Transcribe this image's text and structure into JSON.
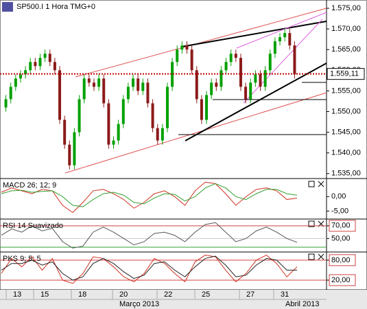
{
  "chart_data": [
    {
      "type": "candlestick",
      "title": "SP500.I 1 Hora TMG+0",
      "open": [
        1551,
        1553,
        1556,
        1558,
        1559,
        1560,
        1562,
        1561,
        1563,
        1564,
        1562,
        1560,
        1548,
        1542,
        1537,
        1545,
        1553,
        1558,
        1557,
        1556,
        1558,
        1552,
        1542,
        1543,
        1547,
        1553,
        1556,
        1558,
        1555,
        1557,
        1552,
        1546,
        1543,
        1546,
        1556,
        1562,
        1565,
        1566,
        1565,
        1560,
        1553,
        1548,
        1554,
        1557,
        1556,
        1560,
        1562,
        1564,
        1563,
        1556,
        1553,
        1557,
        1559,
        1556,
        1560,
        1564,
        1567,
        1568,
        1569,
        1566
      ],
      "high": [
        1554,
        1557,
        1559,
        1560,
        1561,
        1563,
        1563,
        1564,
        1565,
        1565,
        1563,
        1561,
        1549,
        1543,
        1546,
        1554,
        1559,
        1559,
        1558,
        1559,
        1559,
        1553,
        1544,
        1548,
        1554,
        1557,
        1559,
        1559,
        1558,
        1558,
        1553,
        1547,
        1547,
        1557,
        1563,
        1566,
        1567,
        1567,
        1566,
        1561,
        1554,
        1555,
        1558,
        1558,
        1561,
        1563,
        1565,
        1565,
        1564,
        1557,
        1558,
        1560,
        1560,
        1561,
        1565,
        1568,
        1569,
        1570,
        1570,
        1567
      ],
      "low": [
        1550,
        1552,
        1555,
        1557,
        1558,
        1559,
        1560,
        1560,
        1562,
        1561,
        1559,
        1547,
        1541,
        1536,
        1536,
        1544,
        1552,
        1556,
        1555,
        1555,
        1551,
        1541,
        1541,
        1542,
        1546,
        1552,
        1555,
        1554,
        1554,
        1551,
        1545,
        1542,
        1542,
        1545,
        1555,
        1561,
        1564,
        1564,
        1559,
        1552,
        1547,
        1547,
        1553,
        1555,
        1555,
        1559,
        1561,
        1562,
        1555,
        1552,
        1552,
        1556,
        1555,
        1555,
        1559,
        1563,
        1566,
        1567,
        1565,
        1558
      ],
      "close": [
        1553,
        1556,
        1558,
        1559,
        1560,
        1562,
        1561,
        1563,
        1564,
        1562,
        1560,
        1548,
        1542,
        1537,
        1545,
        1553,
        1558,
        1557,
        1556,
        1558,
        1552,
        1542,
        1543,
        1547,
        1553,
        1556,
        1558,
        1555,
        1557,
        1552,
        1546,
        1543,
        1546,
        1556,
        1562,
        1565,
        1566,
        1565,
        1560,
        1553,
        1548,
        1554,
        1557,
        1556,
        1560,
        1562,
        1564,
        1563,
        1556,
        1553,
        1557,
        1559,
        1556,
        1560,
        1564,
        1567,
        1568,
        1569,
        1566,
        1559
      ],
      "up_color": "#00a000",
      "down_color": "#8b1a1a",
      "ylim": [
        1533.8,
        1577
      ],
      "yticks": [
        {
          "value": 1535,
          "label": "1.535,00"
        },
        {
          "value": 1540,
          "label": "1.540,00"
        },
        {
          "value": 1545,
          "label": "1.545,00"
        },
        {
          "value": 1550,
          "label": "1.550,00"
        },
        {
          "value": 1555,
          "label": "1.555,00"
        },
        {
          "value": 1560,
          "label": "1.560,00"
        },
        {
          "value": 1565,
          "label": "1.565,00"
        },
        {
          "value": 1570,
          "label": "1.570,00"
        },
        {
          "value": 1575,
          "label": "1.575,00"
        }
      ],
      "last_price": {
        "value": 1559.11,
        "label": "1.559,11"
      },
      "day_labels": [
        "13",
        "15",
        "18",
        "20",
        "22",
        "25",
        "27",
        "31"
      ],
      "month_labels": [
        "Março 2013",
        "Abril 2013"
      ]
    },
    {
      "type": "line",
      "title": "MACD 26; 12; 9",
      "ylim": [
        -7.75,
        6.25
      ],
      "yticks": [
        {
          "value": 0,
          "label": "0,00"
        },
        {
          "value": -5,
          "label": "-5,00"
        }
      ],
      "series": [
        {
          "color": "#d03020",
          "values": [
            1.5,
            3,
            2,
            1,
            2.5,
            2,
            -3,
            -5.5,
            -2,
            2,
            2.5,
            1,
            -1,
            -4,
            -2,
            1,
            2,
            0,
            -3,
            2,
            5,
            4.5,
            1,
            -3,
            0,
            2.5,
            3,
            2,
            -1,
            -0.5
          ]
        },
        {
          "color": "#30a030",
          "values": [
            1,
            2,
            2.2,
            1.5,
            1.8,
            2,
            0,
            -3,
            -3.5,
            -1,
            1,
            1.5,
            0.5,
            -2,
            -2.5,
            -0.5,
            1,
            0.8,
            -1.5,
            0,
            3,
            4.5,
            3,
            0,
            -1,
            1,
            2.5,
            2.5,
            1,
            0.5
          ]
        }
      ]
    },
    {
      "type": "line",
      "title": "RSI 14 Suavizado",
      "ylim": [
        28.8,
        80.6
      ],
      "yticks": [
        {
          "value": 70,
          "label": "70,00"
        },
        {
          "value": 50,
          "label": "50,00"
        }
      ],
      "series": [
        {
          "color": "#555555",
          "values": [
            55,
            65,
            60,
            70,
            62,
            66,
            45,
            35,
            38,
            60,
            68,
            60,
            50,
            40,
            45,
            58,
            60,
            55,
            45,
            60,
            72,
            75,
            60,
            45,
            50,
            62,
            68,
            60,
            50,
            44
          ]
        }
      ]
    },
    {
      "type": "line",
      "title": "PKS 9; 5; 5",
      "ylim": [
        -8.9,
        104.4
      ],
      "yticks": [
        {
          "value": 80,
          "label": "80,00"
        },
        {
          "value": 20,
          "label": "20,00"
        }
      ],
      "series": [
        {
          "color": "#d03020",
          "values": [
            40,
            85,
            60,
            90,
            50,
            85,
            20,
            10,
            40,
            90,
            85,
            60,
            30,
            15,
            40,
            85,
            70,
            40,
            15,
            75,
            95,
            90,
            50,
            15,
            40,
            80,
            95,
            70,
            30,
            60
          ]
        },
        {
          "color": "#222222",
          "values": [
            50,
            70,
            70,
            80,
            65,
            75,
            40,
            20,
            30,
            70,
            85,
            70,
            45,
            25,
            35,
            70,
            75,
            50,
            30,
            60,
            85,
            92,
            65,
            30,
            35,
            65,
            85,
            80,
            50,
            50
          ]
        }
      ]
    }
  ]
}
